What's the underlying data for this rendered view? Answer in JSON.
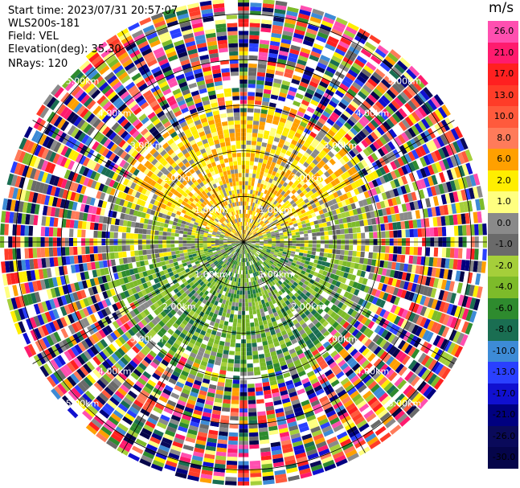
{
  "meta": {
    "start_time": "Start time: 2023/07/31 20:57:07",
    "instrument": "WLS200s-181",
    "field": "Field: VEL",
    "elevation": "Elevation(deg): 35.30",
    "nrays": "NRays: 120"
  },
  "chart_data": {
    "type": "heatmap",
    "projection": "polar-ppi",
    "field": "VEL",
    "units": "m/s",
    "range_rings_km": [
      "1.00km",
      "2.00km",
      "3.00km",
      "4.00km",
      "5.00km"
    ],
    "colorbar": {
      "label": "m/s",
      "ticks": [
        "26.0",
        "21.0",
        "17.0",
        "13.0",
        "10.0",
        "8.0",
        "6.0",
        "2.0",
        "1.0",
        "0.0",
        "-1.0",
        "-2.0",
        "-4.0",
        "-6.0",
        "-8.0",
        "-10.0",
        "-13.0",
        "-17.0",
        "-21.0",
        "-26.0",
        "-30.0"
      ],
      "colors": [
        "#ff4fb0",
        "#ff1b6e",
        "#ff2020",
        "#ff3c28",
        "#ff5a3c",
        "#ff7b5a",
        "#ffa000",
        "#ffee00",
        "#ffff80",
        "#8a8a8a",
        "#6a6a6a",
        "#a5cf3a",
        "#7dbb2a",
        "#2e8b2e",
        "#1a6e52",
        "#3d8bd6",
        "#2a40ff",
        "#1010d0",
        "#000080",
        "#0a0a5a",
        "#05054a"
      ]
    }
  }
}
